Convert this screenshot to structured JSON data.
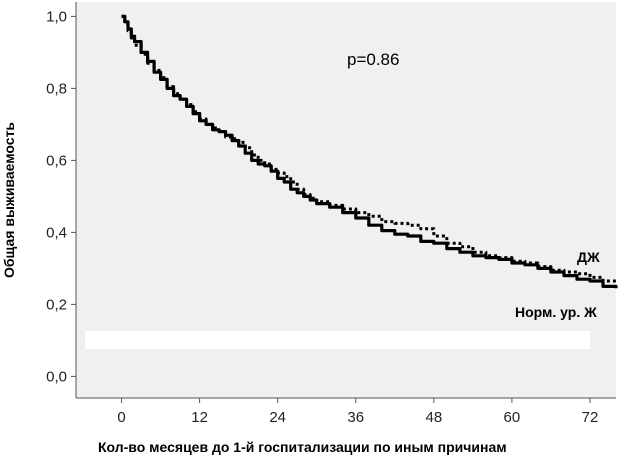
{
  "chart_data": {
    "type": "line",
    "title": "",
    "xlabel": "Кол-во    месяцев до 1-й госпитализации по иным причинам",
    "ylabel": "Общая выживаемость",
    "xlim": [
      -7,
      76
    ],
    "ylim": [
      -0.06,
      1.04
    ],
    "x_ticks": [
      0,
      12,
      24,
      36,
      48,
      60,
      72
    ],
    "x_tick_labels": [
      "0",
      "12",
      "24",
      "36",
      "48",
      "60",
      "72"
    ],
    "y_ticks": [
      0.0,
      0.2,
      0.4,
      0.6,
      0.8,
      1.0
    ],
    "y_tick_labels": [
      "0,0",
      "0,2",
      "0,4",
      "0,6",
      "0,8",
      "1,0"
    ],
    "grid": false,
    "annotations": [
      {
        "text": "p=0.86",
        "x": 40,
        "y": 0.9
      },
      {
        "text": "ДЖ",
        "x": 70,
        "y": 0.34
      },
      {
        "text": "Норм. ур. Ж",
        "x": 62,
        "y": 0.18
      }
    ],
    "colors": {
      "plot_background": "#f0f0f0",
      "line": "#000000",
      "blank_band": "#ffffff"
    },
    "series": [
      {
        "name": "Норм. ур. Ж",
        "style": "solid",
        "x": [
          0,
          0.5,
          1,
          1.5,
          2,
          3,
          4,
          5,
          6,
          7,
          8,
          9,
          10,
          11,
          12,
          13,
          14,
          15,
          16,
          17,
          18,
          19,
          20,
          21,
          22,
          23,
          24,
          25,
          26,
          27,
          28,
          29,
          30,
          32,
          34,
          36,
          38,
          40,
          42,
          44,
          46,
          48,
          50,
          52,
          54,
          56,
          58,
          60,
          62,
          64,
          66,
          68,
          70,
          72,
          74,
          76
        ],
        "y": [
          1.0,
          0.985,
          0.965,
          0.945,
          0.93,
          0.9,
          0.875,
          0.845,
          0.825,
          0.8,
          0.78,
          0.77,
          0.75,
          0.73,
          0.71,
          0.7,
          0.685,
          0.68,
          0.67,
          0.655,
          0.64,
          0.62,
          0.6,
          0.59,
          0.585,
          0.57,
          0.55,
          0.54,
          0.52,
          0.51,
          0.5,
          0.49,
          0.48,
          0.47,
          0.455,
          0.44,
          0.42,
          0.405,
          0.395,
          0.39,
          0.375,
          0.37,
          0.355,
          0.345,
          0.335,
          0.33,
          0.325,
          0.315,
          0.31,
          0.3,
          0.29,
          0.28,
          0.27,
          0.265,
          0.25,
          0.245
        ]
      },
      {
        "name": "ДЖ",
        "style": "dotted",
        "x": [
          0,
          0.5,
          1,
          1.5,
          2,
          3,
          4,
          5,
          6,
          7,
          8,
          9,
          10,
          11,
          12,
          13,
          14,
          15,
          16,
          17,
          18,
          19,
          20,
          21,
          22,
          23,
          24,
          25,
          26,
          27,
          28,
          29,
          30,
          32,
          34,
          36,
          38,
          40,
          42,
          44,
          46,
          48,
          50,
          52,
          54,
          56,
          58,
          60,
          62,
          64,
          66,
          68,
          70,
          72,
          74,
          76
        ],
        "y": [
          1.0,
          0.98,
          0.96,
          0.94,
          0.92,
          0.895,
          0.87,
          0.85,
          0.83,
          0.805,
          0.785,
          0.77,
          0.755,
          0.735,
          0.715,
          0.7,
          0.69,
          0.68,
          0.665,
          0.66,
          0.65,
          0.635,
          0.615,
          0.6,
          0.59,
          0.575,
          0.565,
          0.555,
          0.54,
          0.52,
          0.505,
          0.495,
          0.485,
          0.475,
          0.465,
          0.455,
          0.445,
          0.43,
          0.425,
          0.42,
          0.41,
          0.39,
          0.37,
          0.36,
          0.345,
          0.335,
          0.33,
          0.32,
          0.315,
          0.305,
          0.295,
          0.29,
          0.285,
          0.275,
          0.265,
          0.26
        ]
      }
    ]
  }
}
